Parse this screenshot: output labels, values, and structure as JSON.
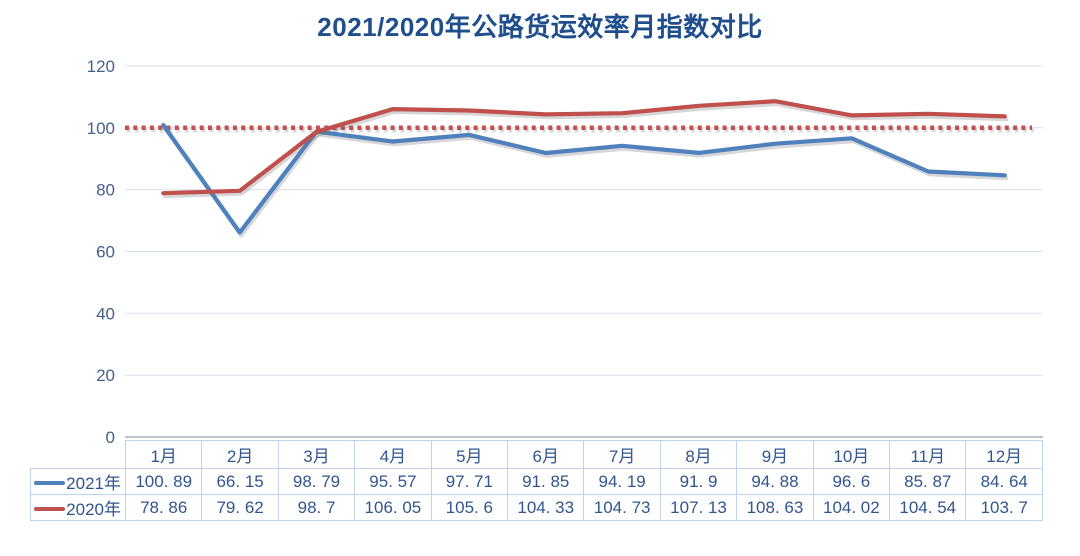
{
  "chart_data": {
    "type": "line",
    "title": "2021/2020年公路货运效率月指数对比",
    "categories": [
      "1月",
      "2月",
      "3月",
      "4月",
      "5月",
      "6月",
      "7月",
      "8月",
      "9月",
      "10月",
      "11月",
      "12月"
    ],
    "series": [
      {
        "name": "2021年",
        "color": "#4F81BD",
        "values": [
          100.89,
          66.15,
          98.79,
          95.57,
          97.71,
          91.85,
          94.19,
          91.9,
          94.88,
          96.6,
          85.87,
          84.64
        ],
        "display": [
          "100. 89",
          "66. 15",
          "98. 79",
          "95. 57",
          "97. 71",
          "91. 85",
          "94. 19",
          "91. 9",
          "94. 88",
          "96. 6",
          "85. 87",
          "84. 64"
        ]
      },
      {
        "name": "2020年",
        "color": "#C0504D",
        "values": [
          78.86,
          79.62,
          98.7,
          106.05,
          105.6,
          104.33,
          104.73,
          107.13,
          108.63,
          104.02,
          104.54,
          103.7
        ],
        "display": [
          "78. 86",
          "79. 62",
          "98. 7",
          "106. 05",
          "105. 6",
          "104. 33",
          "104. 73",
          "107. 13",
          "108. 63",
          "104. 02",
          "104. 54",
          "103. 7"
        ]
      }
    ],
    "xlabel": "",
    "ylabel": "",
    "ylim": [
      0,
      120
    ],
    "yticks": [
      0,
      20,
      40,
      60,
      80,
      100,
      120
    ],
    "grid": true,
    "reference_line": {
      "value": 100,
      "style": "dotted",
      "color": "#C4504E"
    },
    "legend_position": "data-table-left",
    "data_table": true
  },
  "colors": {
    "background": "#FFFFFF",
    "title_text": "#1F4E8C",
    "axis_text": "#44618C",
    "table_text": "#31568E",
    "table_border": "#BFD4EC",
    "gridline": "#D7E0EF",
    "axis_line": "#A7AFBC",
    "series_2021": "#4F81BD",
    "series_2020": "#C0504D"
  }
}
